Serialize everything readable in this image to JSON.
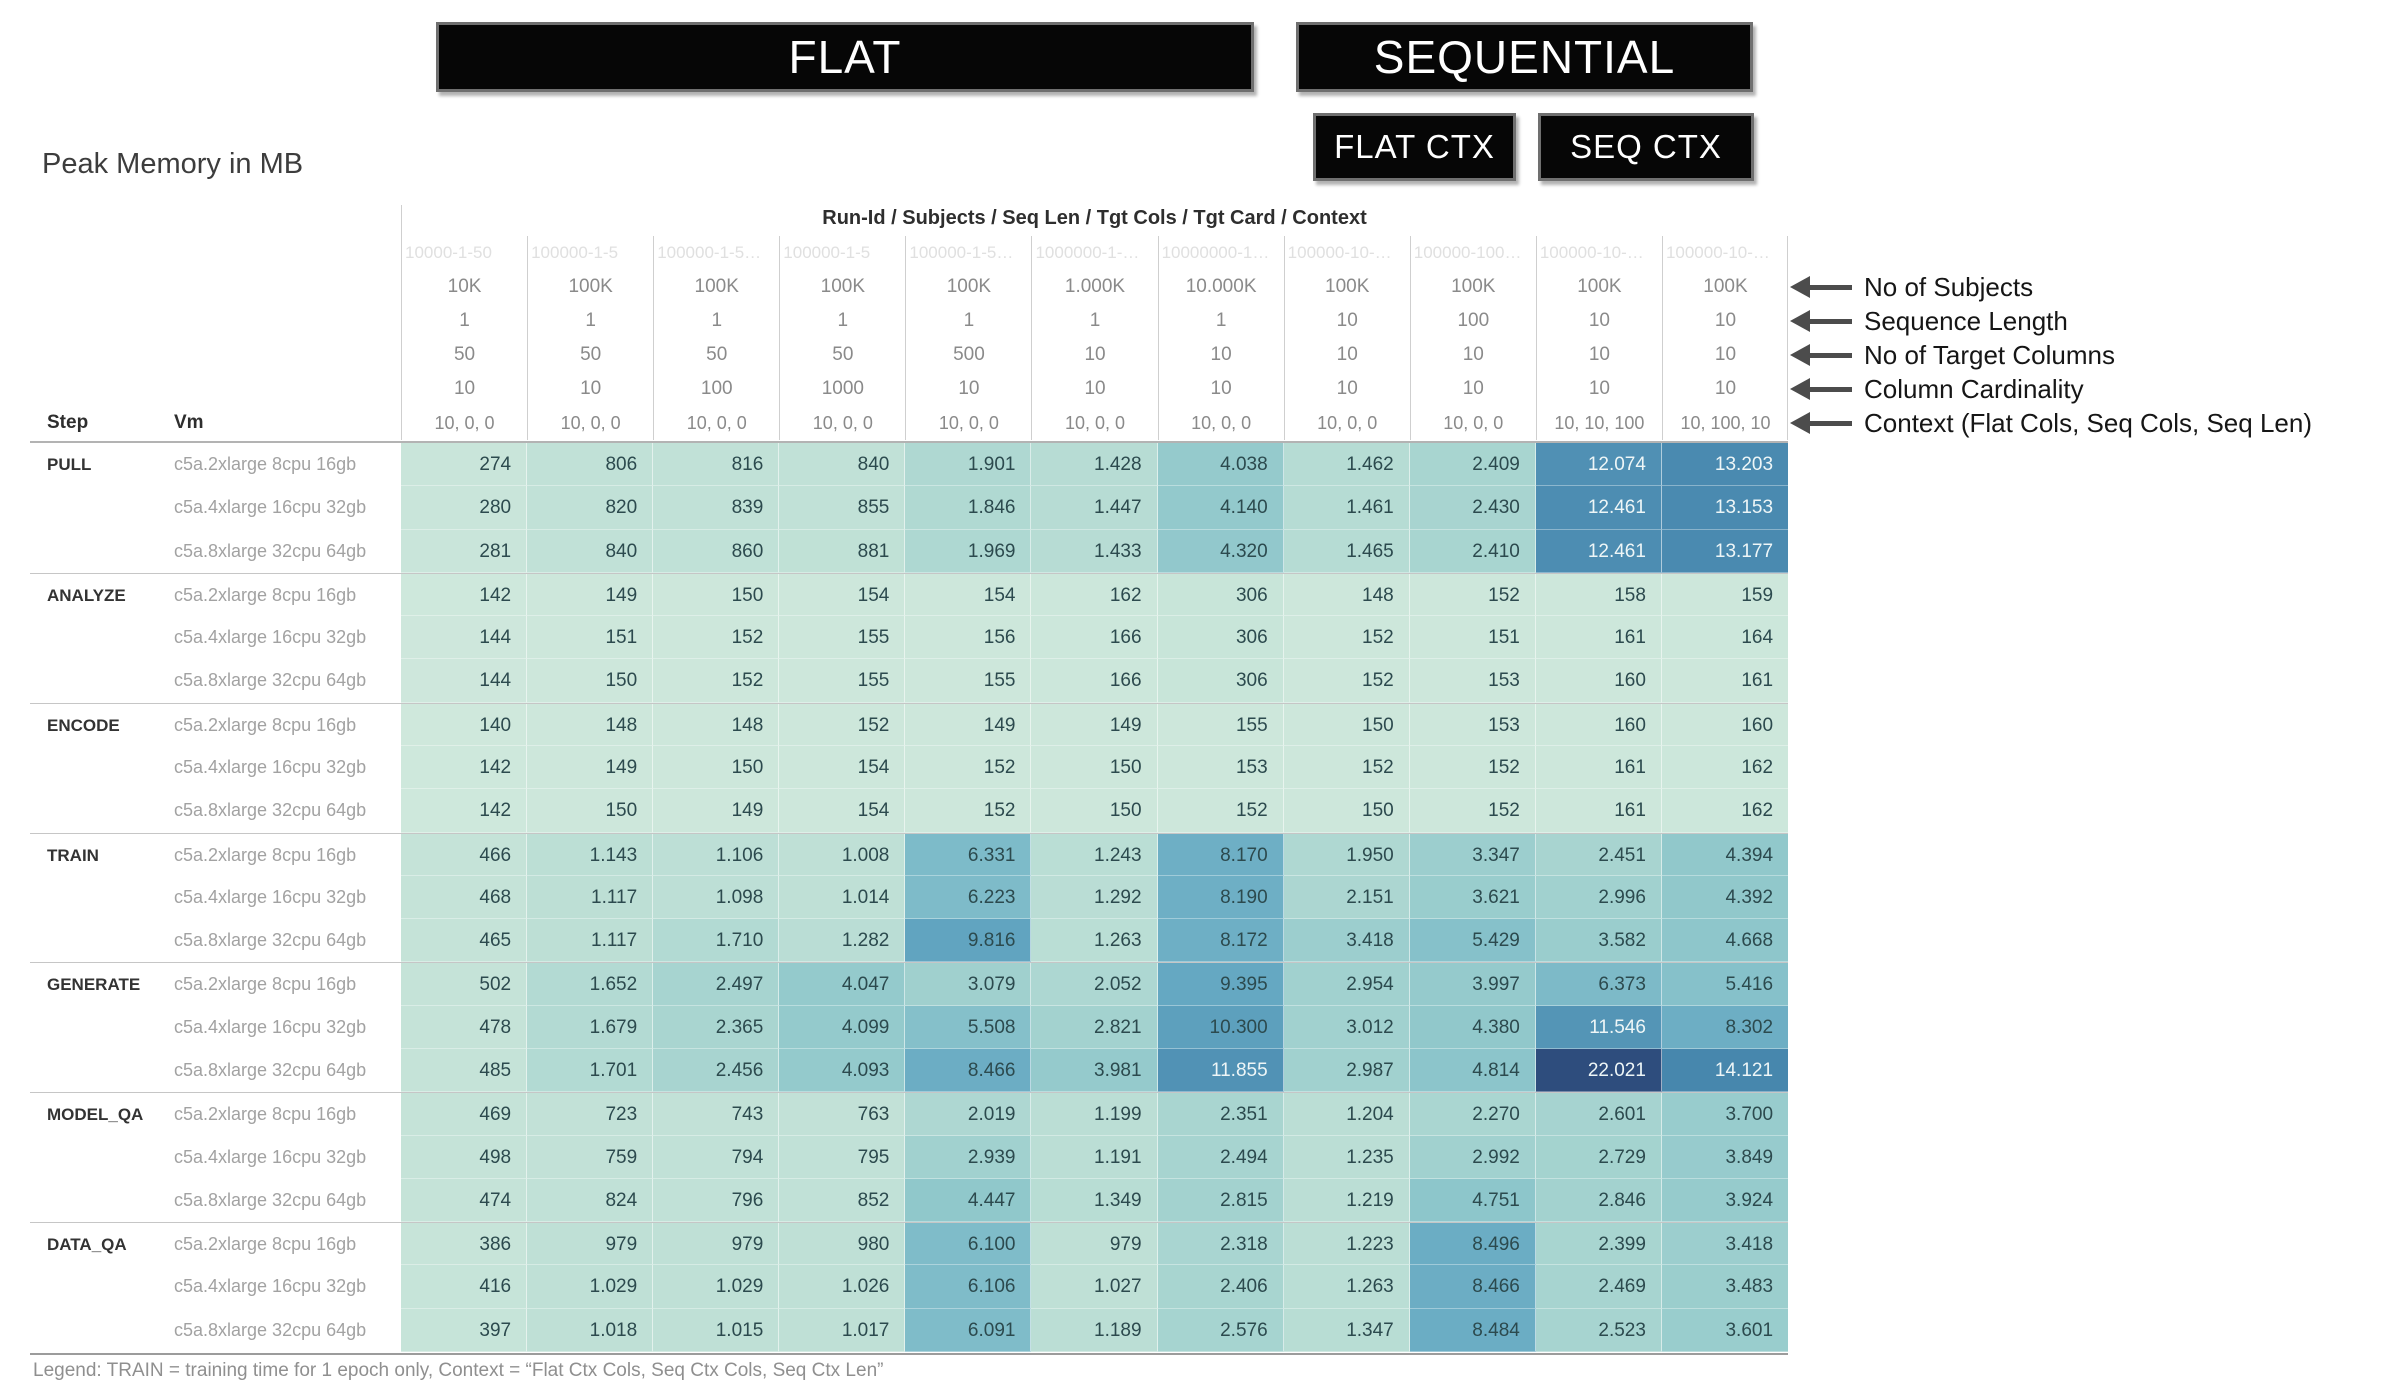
{
  "title": "Peak Memory in MB",
  "group_headers": {
    "flat": "FLAT",
    "sequential": "SEQUENTIAL",
    "flat_ctx": "FLAT CTX",
    "seq_ctx": "SEQ CTX"
  },
  "row_header_labels": {
    "step": "Step",
    "vm": "Vm"
  },
  "annotations": [
    "No of Subjects",
    "Sequence Length",
    "No of Target Columns",
    "Column Cardinality",
    "Context (Flat Cols, Seq Cols, Seq Len)"
  ],
  "legend": "Legend: TRAIN = training time for 1 epoch only, Context = “Flat Ctx Cols, Seq Ctx Cols, Seq Ctx Len”",
  "chart_data": {
    "type": "heatmap",
    "title": "Peak Memory in MB",
    "unit": "MB",
    "column_header": "Run-Id / Subjects / Seq Len / Tgt Cols / Tgt Card / Context",
    "columns": [
      {
        "run_id": "10000-1-50",
        "subjects": "10K",
        "seq_len": "1",
        "tgt_cols": "50",
        "tgt_card": "10",
        "context": "10, 0, 0"
      },
      {
        "run_id": "100000-1-5",
        "subjects": "100K",
        "seq_len": "1",
        "tgt_cols": "50",
        "tgt_card": "10",
        "context": "10, 0, 0"
      },
      {
        "run_id": "100000-1-5…",
        "subjects": "100K",
        "seq_len": "1",
        "tgt_cols": "50",
        "tgt_card": "100",
        "context": "10, 0, 0"
      },
      {
        "run_id": "100000-1-5",
        "subjects": "100K",
        "seq_len": "1",
        "tgt_cols": "50",
        "tgt_card": "1000",
        "context": "10, 0, 0"
      },
      {
        "run_id": "100000-1-5…",
        "subjects": "100K",
        "seq_len": "1",
        "tgt_cols": "500",
        "tgt_card": "10",
        "context": "10, 0, 0"
      },
      {
        "run_id": "1000000-1-…",
        "subjects": "1.000K",
        "seq_len": "1",
        "tgt_cols": "10",
        "tgt_card": "10",
        "context": "10, 0, 0"
      },
      {
        "run_id": "10000000-1…",
        "subjects": "10.000K",
        "seq_len": "1",
        "tgt_cols": "10",
        "tgt_card": "10",
        "context": "10, 0, 0"
      },
      {
        "run_id": "100000-10-…",
        "subjects": "100K",
        "seq_len": "10",
        "tgt_cols": "10",
        "tgt_card": "10",
        "context": "10, 0, 0"
      },
      {
        "run_id": "100000-100…",
        "subjects": "100K",
        "seq_len": "100",
        "tgt_cols": "10",
        "tgt_card": "10",
        "context": "10, 0, 0"
      },
      {
        "run_id": "100000-10-…",
        "subjects": "100K",
        "seq_len": "10",
        "tgt_cols": "10",
        "tgt_card": "10",
        "context": "10, 10, 100"
      },
      {
        "run_id": "100000-10-…",
        "subjects": "100K",
        "seq_len": "10",
        "tgt_cols": "10",
        "tgt_card": "10",
        "context": "10, 100, 10"
      }
    ],
    "rows": [
      {
        "step": "PULL",
        "vm": "c5a.2xlarge 8cpu 16gb",
        "values": [
          "274",
          "806",
          "816",
          "840",
          "1.901",
          "1.428",
          "4.038",
          "1.462",
          "2.409",
          "12.074",
          "13.203"
        ]
      },
      {
        "step": "PULL",
        "vm": "c5a.4xlarge 16cpu 32gb",
        "values": [
          "280",
          "820",
          "839",
          "855",
          "1.846",
          "1.447",
          "4.140",
          "1.461",
          "2.430",
          "12.461",
          "13.153"
        ]
      },
      {
        "step": "PULL",
        "vm": "c5a.8xlarge 32cpu 64gb",
        "values": [
          "281",
          "840",
          "860",
          "881",
          "1.969",
          "1.433",
          "4.320",
          "1.465",
          "2.410",
          "12.461",
          "13.177"
        ]
      },
      {
        "step": "ANALYZE",
        "vm": "c5a.2xlarge 8cpu 16gb",
        "values": [
          "142",
          "149",
          "150",
          "154",
          "154",
          "162",
          "306",
          "148",
          "152",
          "158",
          "159"
        ]
      },
      {
        "step": "ANALYZE",
        "vm": "c5a.4xlarge 16cpu 32gb",
        "values": [
          "144",
          "151",
          "152",
          "155",
          "156",
          "166",
          "306",
          "152",
          "151",
          "161",
          "164"
        ]
      },
      {
        "step": "ANALYZE",
        "vm": "c5a.8xlarge 32cpu 64gb",
        "values": [
          "144",
          "150",
          "152",
          "155",
          "155",
          "166",
          "306",
          "152",
          "153",
          "160",
          "161"
        ]
      },
      {
        "step": "ENCODE",
        "vm": "c5a.2xlarge 8cpu 16gb",
        "values": [
          "140",
          "148",
          "148",
          "152",
          "149",
          "149",
          "155",
          "150",
          "153",
          "160",
          "160"
        ]
      },
      {
        "step": "ENCODE",
        "vm": "c5a.4xlarge 16cpu 32gb",
        "values": [
          "142",
          "149",
          "150",
          "154",
          "152",
          "150",
          "153",
          "152",
          "152",
          "161",
          "162"
        ]
      },
      {
        "step": "ENCODE",
        "vm": "c5a.8xlarge 32cpu 64gb",
        "values": [
          "142",
          "150",
          "149",
          "154",
          "152",
          "150",
          "152",
          "150",
          "152",
          "161",
          "162"
        ]
      },
      {
        "step": "TRAIN",
        "vm": "c5a.2xlarge 8cpu 16gb",
        "values": [
          "466",
          "1.143",
          "1.106",
          "1.008",
          "6.331",
          "1.243",
          "8.170",
          "1.950",
          "3.347",
          "2.451",
          "4.394"
        ]
      },
      {
        "step": "TRAIN",
        "vm": "c5a.4xlarge 16cpu 32gb",
        "values": [
          "468",
          "1.117",
          "1.098",
          "1.014",
          "6.223",
          "1.292",
          "8.190",
          "2.151",
          "3.621",
          "2.996",
          "4.392"
        ]
      },
      {
        "step": "TRAIN",
        "vm": "c5a.8xlarge 32cpu 64gb",
        "values": [
          "465",
          "1.117",
          "1.710",
          "1.282",
          "9.816",
          "1.263",
          "8.172",
          "3.418",
          "5.429",
          "3.582",
          "4.668"
        ]
      },
      {
        "step": "GENERATE",
        "vm": "c5a.2xlarge 8cpu 16gb",
        "values": [
          "502",
          "1.652",
          "2.497",
          "4.047",
          "3.079",
          "2.052",
          "9.395",
          "2.954",
          "3.997",
          "6.373",
          "5.416"
        ]
      },
      {
        "step": "GENERATE",
        "vm": "c5a.4xlarge 16cpu 32gb",
        "values": [
          "478",
          "1.679",
          "2.365",
          "4.099",
          "5.508",
          "2.821",
          "10.300",
          "3.012",
          "4.380",
          "11.546",
          "8.302"
        ]
      },
      {
        "step": "GENERATE",
        "vm": "c5a.8xlarge 32cpu 64gb",
        "values": [
          "485",
          "1.701",
          "2.456",
          "4.093",
          "8.466",
          "3.981",
          "11.855",
          "2.987",
          "4.814",
          "22.021",
          "14.121"
        ]
      },
      {
        "step": "MODEL_QA",
        "vm": "c5a.2xlarge 8cpu 16gb",
        "values": [
          "469",
          "723",
          "743",
          "763",
          "2.019",
          "1.199",
          "2.351",
          "1.204",
          "2.270",
          "2.601",
          "3.700"
        ]
      },
      {
        "step": "MODEL_QA",
        "vm": "c5a.4xlarge 16cpu 32gb",
        "values": [
          "498",
          "759",
          "794",
          "795",
          "2.939",
          "1.191",
          "2.494",
          "1.235",
          "2.992",
          "2.729",
          "3.849"
        ]
      },
      {
        "step": "MODEL_QA",
        "vm": "c5a.8xlarge 32cpu 64gb",
        "values": [
          "474",
          "824",
          "796",
          "852",
          "4.447",
          "1.349",
          "2.815",
          "1.219",
          "4.751",
          "2.846",
          "3.924"
        ]
      },
      {
        "step": "DATA_QA",
        "vm": "c5a.2xlarge 8cpu 16gb",
        "values": [
          "386",
          "979",
          "979",
          "980",
          "6.100",
          "979",
          "2.318",
          "1.223",
          "8.496",
          "2.399",
          "3.418"
        ]
      },
      {
        "step": "DATA_QA",
        "vm": "c5a.4xlarge 16cpu 32gb",
        "values": [
          "416",
          "1.029",
          "1.029",
          "1.026",
          "6.106",
          "1.027",
          "2.406",
          "1.263",
          "8.466",
          "2.469",
          "3.483"
        ]
      },
      {
        "step": "DATA_QA",
        "vm": "c5a.8xlarge 32cpu 64gb",
        "values": [
          "397",
          "1.018",
          "1.015",
          "1.017",
          "6.091",
          "1.189",
          "2.576",
          "1.347",
          "8.484",
          "2.523",
          "3.601"
        ]
      }
    ],
    "color_scale": {
      "mapping": "sqrt",
      "domain": [
        140,
        22021
      ],
      "stops": [
        [
          0.0,
          "#cfe8dc"
        ],
        [
          0.2,
          "#bfe0d6"
        ],
        [
          0.35,
          "#a3d2cf"
        ],
        [
          0.45,
          "#8fc7cb"
        ],
        [
          0.55,
          "#79b8c8"
        ],
        [
          0.65,
          "#65a8c2"
        ],
        [
          0.75,
          "#4d8db2"
        ],
        [
          0.85,
          "#4080a8"
        ],
        [
          1.0,
          "#2e4d7d"
        ]
      ],
      "light_text_threshold": 0.7,
      "light_text_color": "#eef6f7",
      "dark_text_color": "#2c4a4e"
    }
  }
}
